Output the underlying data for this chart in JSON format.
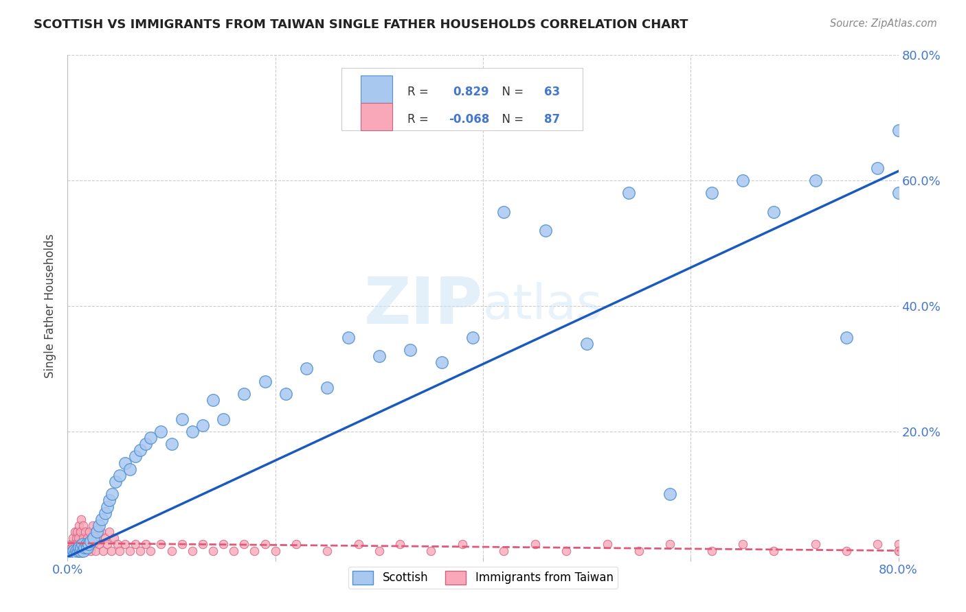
{
  "title": "SCOTTISH VS IMMIGRANTS FROM TAIWAN SINGLE FATHER HOUSEHOLDS CORRELATION CHART",
  "source": "Source: ZipAtlas.com",
  "ylabel": "Single Father Households",
  "watermark": "ZIPatlas",
  "r_scottish": 0.829,
  "n_scottish": 63,
  "r_taiwan": -0.068,
  "n_taiwan": 87,
  "scottish_color": "#a8c8f0",
  "scottish_edge_color": "#5090d0",
  "scottish_line_color": "#1a5abf",
  "taiwan_color": "#f8a8b8",
  "taiwan_edge_color": "#d06080",
  "taiwan_line_color": "#e05878",
  "background_color": "#ffffff",
  "grid_color": "#cccccc",
  "xlim": [
    0.0,
    0.8
  ],
  "ylim": [
    0.0,
    0.8
  ],
  "scottish_x": [
    0.003,
    0.005,
    0.006,
    0.007,
    0.008,
    0.009,
    0.01,
    0.011,
    0.012,
    0.013,
    0.014,
    0.015,
    0.016,
    0.018,
    0.019,
    0.02,
    0.022,
    0.025,
    0.028,
    0.03,
    0.033,
    0.036,
    0.038,
    0.04,
    0.043,
    0.046,
    0.05,
    0.055,
    0.06,
    0.065,
    0.07,
    0.075,
    0.08,
    0.09,
    0.1,
    0.11,
    0.12,
    0.13,
    0.14,
    0.15,
    0.17,
    0.19,
    0.21,
    0.23,
    0.25,
    0.27,
    0.3,
    0.33,
    0.36,
    0.39,
    0.42,
    0.46,
    0.5,
    0.54,
    0.58,
    0.62,
    0.65,
    0.68,
    0.72,
    0.75,
    0.78,
    0.8,
    0.8
  ],
  "scottish_y": [
    0.005,
    0.005,
    0.01,
    0.005,
    0.01,
    0.005,
    0.01,
    0.015,
    0.01,
    0.015,
    0.02,
    0.01,
    0.015,
    0.02,
    0.015,
    0.02,
    0.025,
    0.03,
    0.04,
    0.05,
    0.06,
    0.07,
    0.08,
    0.09,
    0.1,
    0.12,
    0.13,
    0.15,
    0.14,
    0.16,
    0.17,
    0.18,
    0.19,
    0.2,
    0.18,
    0.22,
    0.2,
    0.21,
    0.25,
    0.22,
    0.26,
    0.28,
    0.26,
    0.3,
    0.27,
    0.35,
    0.32,
    0.33,
    0.31,
    0.35,
    0.55,
    0.52,
    0.34,
    0.58,
    0.1,
    0.58,
    0.6,
    0.55,
    0.6,
    0.35,
    0.62,
    0.58,
    0.68
  ],
  "taiwan_x": [
    0.001,
    0.002,
    0.003,
    0.004,
    0.005,
    0.005,
    0.006,
    0.007,
    0.007,
    0.008,
    0.008,
    0.009,
    0.009,
    0.01,
    0.01,
    0.011,
    0.011,
    0.012,
    0.012,
    0.013,
    0.013,
    0.014,
    0.015,
    0.015,
    0.016,
    0.017,
    0.018,
    0.019,
    0.02,
    0.021,
    0.022,
    0.023,
    0.024,
    0.025,
    0.026,
    0.027,
    0.028,
    0.03,
    0.032,
    0.034,
    0.036,
    0.038,
    0.04,
    0.042,
    0.045,
    0.048,
    0.05,
    0.055,
    0.06,
    0.065,
    0.07,
    0.075,
    0.08,
    0.09,
    0.1,
    0.11,
    0.12,
    0.13,
    0.14,
    0.15,
    0.16,
    0.17,
    0.18,
    0.19,
    0.2,
    0.22,
    0.25,
    0.28,
    0.3,
    0.32,
    0.35,
    0.38,
    0.42,
    0.45,
    0.48,
    0.52,
    0.55,
    0.58,
    0.62,
    0.65,
    0.68,
    0.72,
    0.75,
    0.78,
    0.8,
    0.8,
    0.8
  ],
  "taiwan_y": [
    0.01,
    0.01,
    0.02,
    0.015,
    0.02,
    0.03,
    0.01,
    0.02,
    0.04,
    0.01,
    0.03,
    0.02,
    0.04,
    0.01,
    0.03,
    0.02,
    0.05,
    0.01,
    0.04,
    0.02,
    0.06,
    0.01,
    0.03,
    0.05,
    0.02,
    0.04,
    0.01,
    0.03,
    0.02,
    0.04,
    0.01,
    0.03,
    0.05,
    0.02,
    0.04,
    0.01,
    0.03,
    0.02,
    0.04,
    0.01,
    0.03,
    0.02,
    0.04,
    0.01,
    0.03,
    0.02,
    0.01,
    0.02,
    0.01,
    0.02,
    0.01,
    0.02,
    0.01,
    0.02,
    0.01,
    0.02,
    0.01,
    0.02,
    0.01,
    0.02,
    0.01,
    0.02,
    0.01,
    0.02,
    0.01,
    0.02,
    0.01,
    0.02,
    0.01,
    0.02,
    0.01,
    0.02,
    0.01,
    0.02,
    0.01,
    0.02,
    0.01,
    0.02,
    0.01,
    0.02,
    0.01,
    0.02,
    0.01,
    0.02,
    0.01,
    0.02,
    0.01
  ],
  "scottish_line_x": [
    0.0,
    0.8
  ],
  "scottish_line_y": [
    0.0,
    0.615
  ],
  "taiwan_line_x": [
    0.0,
    0.8
  ],
  "taiwan_line_y": [
    0.022,
    0.01
  ]
}
